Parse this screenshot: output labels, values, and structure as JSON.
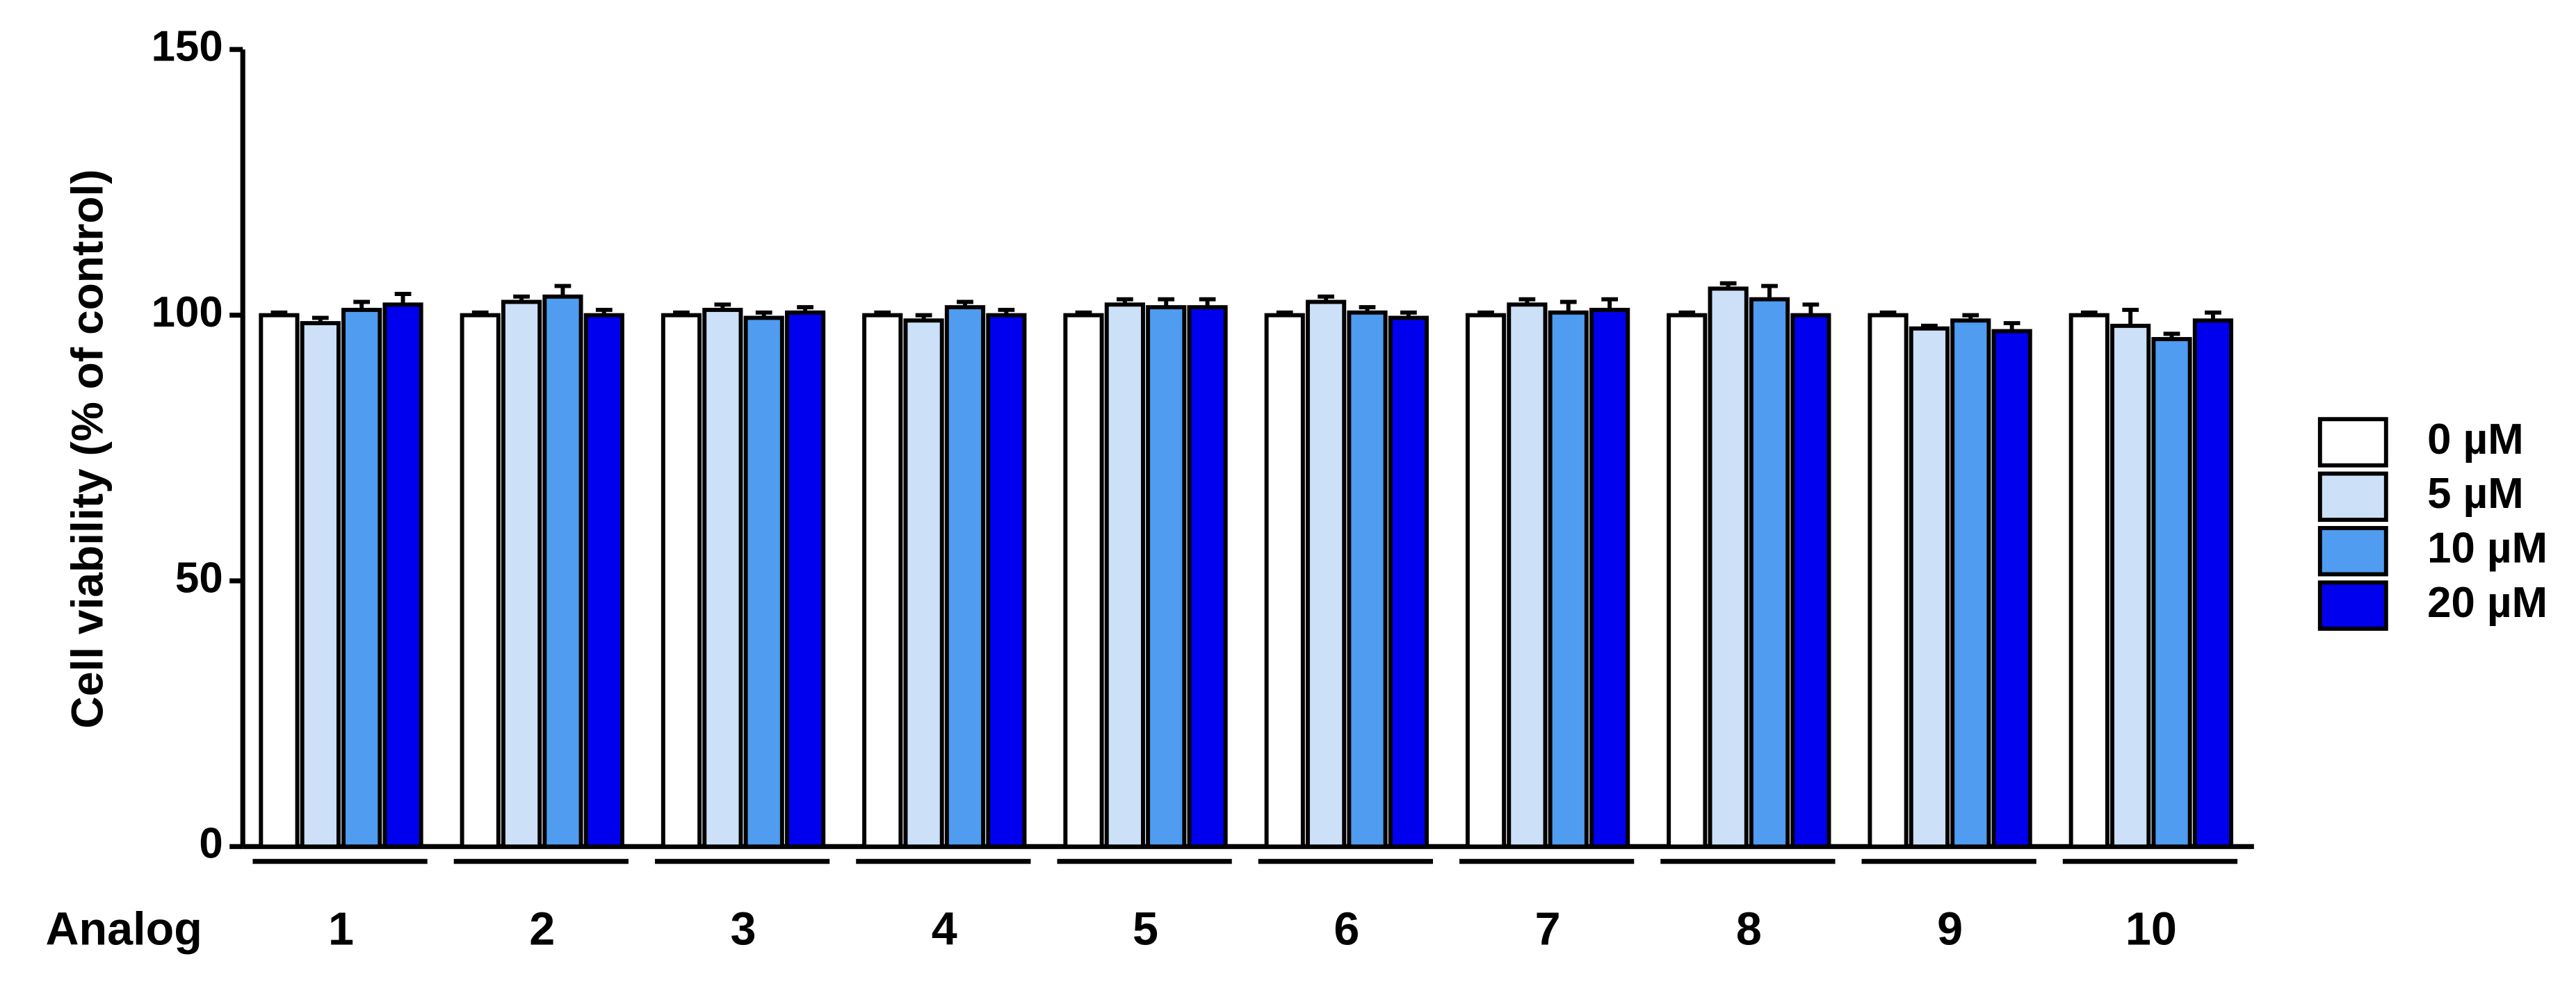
{
  "chart_data": {
    "type": "bar",
    "y_label": "Cell viability (% of control)",
    "x_label": "Analog",
    "categories": [
      "1",
      "2",
      "3",
      "4",
      "5",
      "6",
      "7",
      "8",
      "9",
      "10"
    ],
    "series": [
      {
        "name": "0 µM",
        "color": "#ffffff",
        "values": [
          100,
          100,
          100,
          100,
          100,
          100,
          100,
          100,
          100,
          100
        ],
        "errors": [
          0.5,
          0.5,
          0.5,
          0.5,
          0.5,
          0.5,
          0.5,
          0.5,
          0.5,
          0.5
        ]
      },
      {
        "name": "5 µM",
        "color": "#cce0f8",
        "values": [
          98.5,
          102.5,
          101,
          99,
          102,
          102.5,
          102,
          105,
          97.5,
          98
        ],
        "errors": [
          1,
          1,
          1,
          1,
          1,
          1,
          1,
          1,
          0.5,
          3
        ]
      },
      {
        "name": "10 µM",
        "color": "#4f9cf0",
        "values": [
          101,
          103.5,
          99.5,
          101.5,
          101.5,
          100.5,
          100.5,
          103,
          99,
          95.5
        ],
        "errors": [
          1.5,
          2,
          1,
          1,
          1.5,
          1,
          2,
          2.5,
          1,
          1
        ]
      },
      {
        "name": "20 µM",
        "color": "#0000ee",
        "values": [
          102,
          100,
          100.5,
          100,
          101.5,
          99.5,
          101,
          100,
          97,
          99
        ],
        "errors": [
          2,
          1,
          1,
          1,
          1.5,
          1,
          2,
          2,
          1.5,
          1.5
        ]
      }
    ],
    "ylim": [
      0,
      150
    ],
    "yticks": [
      0,
      50,
      100,
      150
    ],
    "grid": false,
    "legend": "right"
  }
}
